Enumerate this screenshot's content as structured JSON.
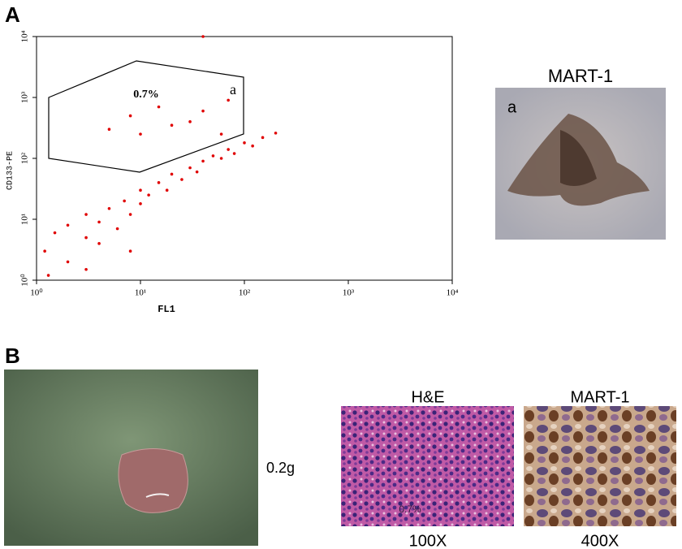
{
  "panels": {
    "a": "A",
    "b": "B"
  },
  "chart_data": {
    "type": "scatter",
    "x_label": "FL1",
    "y_label": "CD133-PE",
    "log_scale": true,
    "color": "#e00000",
    "xlim": [
      1,
      10000
    ],
    "ylim": [
      1,
      10000
    ],
    "xticks": [
      {
        "value": 1,
        "label": "10⁰"
      },
      {
        "value": 10,
        "label": "10¹"
      },
      {
        "value": 100,
        "label": "10²"
      },
      {
        "value": 1000,
        "label": "10³"
      },
      {
        "value": 10000,
        "label": "10⁴"
      }
    ],
    "yticks": [
      {
        "value": 1,
        "label": "10⁰"
      },
      {
        "value": 10,
        "label": "10¹"
      },
      {
        "value": 100,
        "label": "10²"
      },
      {
        "value": 1000,
        "label": "10³"
      },
      {
        "value": 10000,
        "label": "10⁴"
      }
    ],
    "gate_label": "a",
    "annotation": "0.7%",
    "x": [
      1.2,
      1.5,
      2,
      2,
      3,
      3,
      4,
      4,
      5,
      6,
      7,
      8,
      10,
      10,
      12,
      15,
      18,
      20,
      25,
      30,
      35,
      40,
      50,
      60,
      70,
      80,
      100,
      120,
      150,
      200,
      3,
      8,
      1.3,
      5,
      8,
      10,
      15,
      20,
      30,
      40,
      60,
      70,
      40
    ],
    "values": [
      3,
      6,
      2,
      8,
      5,
      12,
      4,
      9,
      15,
      7,
      20,
      12,
      18,
      30,
      25,
      40,
      30,
      55,
      45,
      70,
      60,
      90,
      110,
      100,
      140,
      120,
      180,
      160,
      220,
      260,
      1.5,
      3,
      1.2,
      300,
      500,
      250,
      700,
      350,
      400,
      600,
      250,
      900,
      10000
    ]
  },
  "image_a": {
    "title": "MART-1",
    "label": "a"
  },
  "image_b": {
    "weight": "0.2g"
  },
  "image_he": {
    "title": "H&E",
    "magnification": "100X",
    "overlay": "0.7%"
  },
  "image_mart": {
    "title": "MART-1",
    "magnification": "400X"
  }
}
